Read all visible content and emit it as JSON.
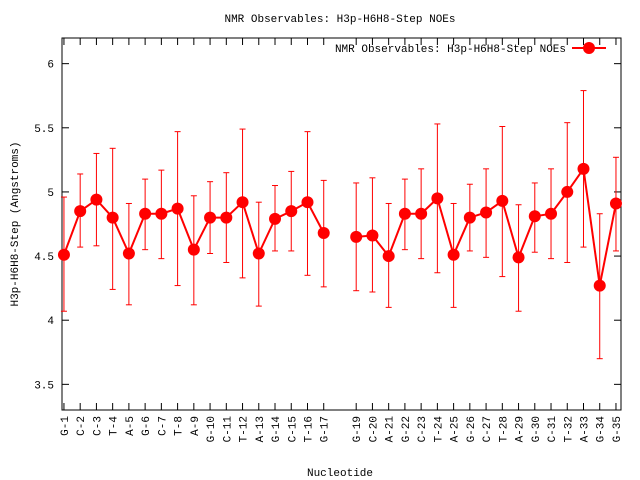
{
  "chart_data": {
    "type": "line",
    "title": "NMR Observables: H3p-H6H8-Step NOEs",
    "xlabel": "Nucleotide",
    "ylabel": "H3p-H6H8-Step (Angstroms)",
    "ylim": [
      3.3,
      6.2
    ],
    "yticks": [
      3.5,
      4,
      4.5,
      5,
      5.5,
      6
    ],
    "ytick_labels": [
      "3.5",
      "4",
      "4.5",
      "5",
      "5.5",
      "6"
    ],
    "legend_position": "top-right",
    "grid": false,
    "color": "#ff0000",
    "categories": [
      "G-1",
      "C-2",
      "C-3",
      "T-4",
      "A-5",
      "G-6",
      "C-7",
      "T-8",
      "A-9",
      "G-10",
      "C-11",
      "T-12",
      "A-13",
      "G-14",
      "C-15",
      "T-16",
      "G-17",
      "G-19",
      "C-20",
      "A-21",
      "G-22",
      "C-23",
      "T-24",
      "A-25",
      "G-26",
      "C-27",
      "T-28",
      "A-29",
      "G-30",
      "C-31",
      "T-32",
      "A-33",
      "G-34",
      "G-35"
    ],
    "x": [
      1,
      2,
      3,
      4,
      5,
      6,
      7,
      8,
      9,
      10,
      11,
      12,
      13,
      14,
      15,
      16,
      17,
      19,
      20,
      21,
      22,
      23,
      24,
      25,
      26,
      27,
      28,
      29,
      30,
      31,
      32,
      33,
      34,
      35
    ],
    "series": [
      {
        "name": "NMR Observables: H3p-H6H8-Step NOEs",
        "values": [
          4.51,
          4.85,
          4.94,
          4.8,
          4.52,
          4.83,
          4.83,
          4.87,
          4.55,
          4.8,
          4.8,
          4.92,
          4.52,
          4.79,
          4.85,
          4.92,
          4.68,
          4.65,
          4.66,
          4.5,
          4.83,
          4.83,
          4.95,
          4.51,
          4.8,
          4.84,
          4.93,
          4.49,
          4.81,
          4.83,
          5.0,
          5.18,
          4.27,
          4.91
        ],
        "err_low": [
          4.07,
          4.57,
          4.58,
          4.24,
          4.12,
          4.55,
          4.48,
          4.27,
          4.12,
          4.52,
          4.45,
          4.33,
          4.11,
          4.54,
          4.54,
          4.35,
          4.26,
          4.23,
          4.22,
          4.1,
          4.55,
          4.48,
          4.37,
          4.1,
          4.54,
          4.49,
          4.34,
          4.07,
          4.53,
          4.48,
          4.45,
          4.57,
          3.7,
          4.54
        ],
        "err_high": [
          4.96,
          5.14,
          5.3,
          5.34,
          4.91,
          5.1,
          5.17,
          5.47,
          4.97,
          5.08,
          5.15,
          5.49,
          4.92,
          5.05,
          5.16,
          5.47,
          5.09,
          5.07,
          5.11,
          4.91,
          5.1,
          5.18,
          5.53,
          4.91,
          5.06,
          5.18,
          5.51,
          4.9,
          5.07,
          5.18,
          5.54,
          5.79,
          4.83,
          5.27
        ]
      }
    ]
  }
}
